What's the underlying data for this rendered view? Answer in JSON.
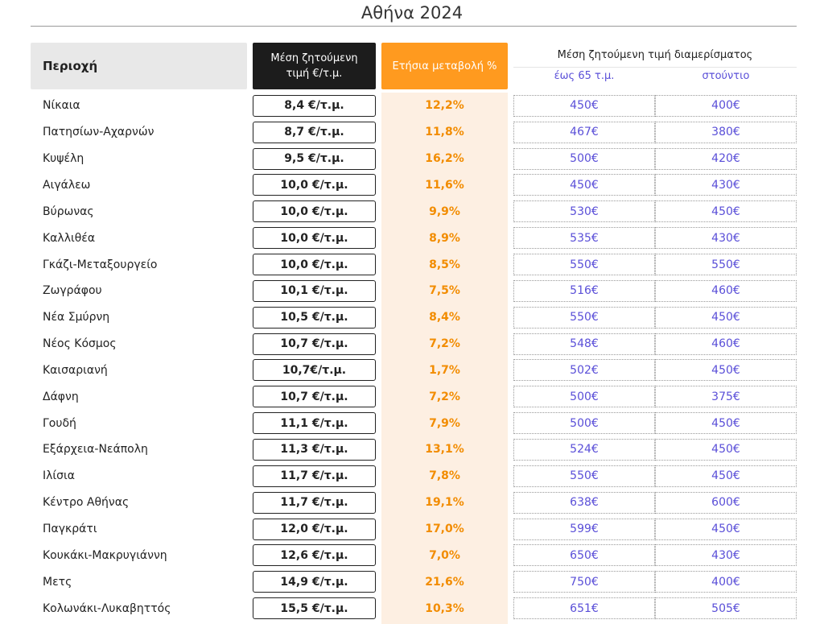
{
  "header": {
    "title": "Αθήνα 2024"
  },
  "table": {
    "columns": [
      "Περιοχή",
      "Μέση ζητούμενη τιμή €/τ.μ.",
      "Ετήσια μεταβολή %"
    ],
    "group_header": "Μέση ζητούμενη τιμή διαμερίσματος",
    "sub_columns": [
      "έως 65 τ.μ.",
      "στούντιο"
    ],
    "rows": [
      [
        "Νίκαια",
        "8,4 €/τ.μ.",
        "12,2%",
        "450€",
        "400€"
      ],
      [
        "Πατησίων-Αχαρνών",
        "8,7 €/τ.μ.",
        "11,8%",
        "467€",
        "380€"
      ],
      [
        "Κυψέλη",
        "9,5 €/τ.μ.",
        "16,2%",
        "500€",
        "420€"
      ],
      [
        "Αιγάλεω",
        "10,0 €/τ.μ.",
        "11,6%",
        "450€",
        "430€"
      ],
      [
        "Βύρωνας",
        "10,0 €/τ.μ.",
        "9,9%",
        "530€",
        "450€"
      ],
      [
        "Καλλιθέα",
        "10,0 €/τ.μ.",
        "8,9%",
        "535€",
        "430€"
      ],
      [
        "Γκάζι-Μεταξουργείο",
        "10,0 €/τ.μ.",
        "8,5%",
        "550€",
        "550€"
      ],
      [
        "Ζωγράφου",
        "10,1 €/τ.μ.",
        "7,5%",
        "516€",
        "460€"
      ],
      [
        "Νέα Σμύρνη",
        "10,5 €/τ.μ.",
        "8,4%",
        "550€",
        "450€"
      ],
      [
        "Νέος Κόσμος",
        "10,7 €/τ.μ.",
        "7,2%",
        "548€",
        "460€"
      ],
      [
        "Καισαριανή",
        "10,7€/τ.μ.",
        "1,7%",
        "502€",
        "450€"
      ],
      [
        "Δάφνη",
        "10,7 €/τ.μ.",
        "7,2%",
        "500€",
        "375€"
      ],
      [
        "Γουδή",
        "11,1 €/τ.μ.",
        "7,9%",
        "500€",
        "450€"
      ],
      [
        "Εξάρχεια-Νεάπολη",
        "11,3 €/τ.μ.",
        "13,1%",
        "524€",
        "450€"
      ],
      [
        "Ιλίσια",
        "11,7 €/τ.μ.",
        "7,8%",
        "550€",
        "450€"
      ],
      [
        "Κέντρο Αθήνας",
        "11,7 €/τ.μ.",
        "19,1%",
        "638€",
        "600€"
      ],
      [
        "Παγκράτι",
        "12,0 €/τ.μ.",
        "17,0%",
        "599€",
        "450€"
      ],
      [
        "Κουκάκι-Μακρυγιάννη",
        "12,6 €/τ.μ.",
        "7,0%",
        "650€",
        "430€"
      ],
      [
        "Μετς",
        "14,9 €/τ.μ.",
        "21,6%",
        "750€",
        "400€"
      ],
      [
        "Κολωνάκι-Λυκαβηττός",
        "15,5 €/τ.μ.",
        "10,3%",
        "651€",
        "505€"
      ]
    ]
  }
}
